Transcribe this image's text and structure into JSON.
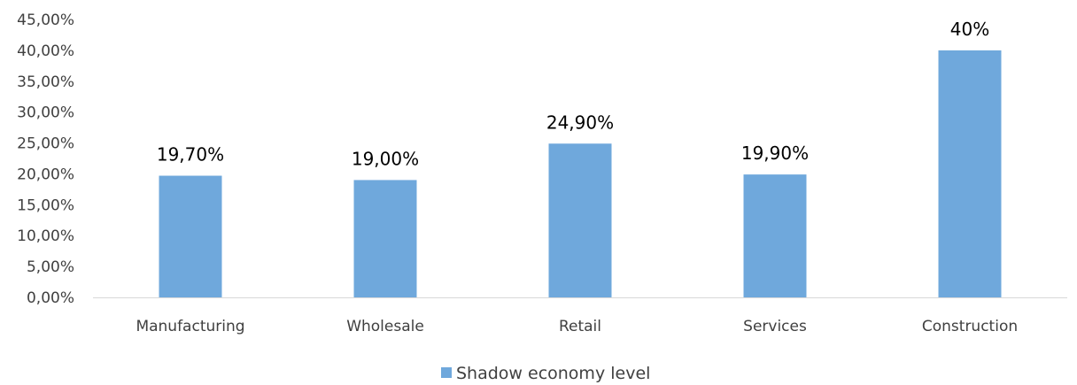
{
  "chart_data": {
    "type": "bar",
    "categories": [
      "Manufacturing",
      "Wholesale",
      "Retail",
      "Services",
      "Construction"
    ],
    "series": [
      {
        "name": "Shadow economy level",
        "values": [
          19.7,
          19.0,
          24.9,
          19.9,
          40.0
        ],
        "data_labels": [
          "19,70%",
          "19,00%",
          "24,90%",
          "19,90%",
          "40%"
        ],
        "color": "#6FA8DC"
      }
    ],
    "y_ticks": [
      "0,00%",
      "5,00%",
      "10,00%",
      "15,00%",
      "20,00%",
      "25,00%",
      "30,00%",
      "35,00%",
      "40,00%",
      "45,00%"
    ],
    "ylim": [
      0,
      45
    ],
    "title": "",
    "xlabel": "",
    "ylabel": "",
    "grid": false,
    "legend": "bottom-center",
    "axis_color": "#D9D9D9"
  }
}
